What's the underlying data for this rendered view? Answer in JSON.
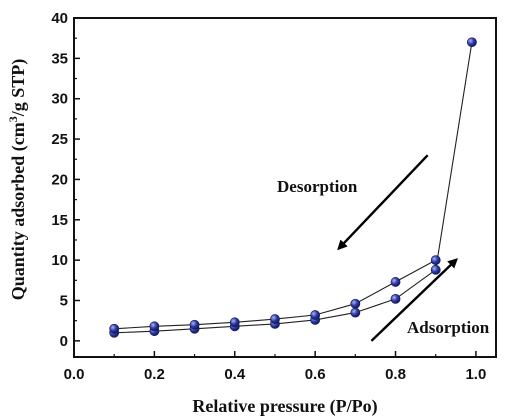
{
  "chart_data": {
    "type": "line",
    "title": "",
    "xlabel": "Relative pressure (P/Po)",
    "ylabel_parts": {
      "pre": "Quantity adsorbed (cm",
      "sup": "3",
      "post": "/g STP)"
    },
    "xlim": [
      0.0,
      1.05
    ],
    "ylim": [
      -2,
      40
    ],
    "xticks": [
      0.0,
      0.2,
      0.4,
      0.6,
      0.8,
      1.0
    ],
    "xtick_labels": [
      "0.0",
      "0.2",
      "0.4",
      "0.6",
      "0.8",
      "1.0"
    ],
    "yticks": [
      0,
      5,
      10,
      15,
      20,
      25,
      30,
      35,
      40
    ],
    "ytick_labels": [
      "0",
      "5",
      "10",
      "15",
      "20",
      "25",
      "30",
      "35",
      "40"
    ],
    "grid": false,
    "series": [
      {
        "x": [
          0.1,
          0.2,
          0.3,
          0.4,
          0.5,
          0.6,
          0.7,
          0.8,
          0.9,
          0.99
        ],
        "y": [
          1.0,
          1.2,
          1.5,
          1.8,
          2.1,
          2.6,
          3.5,
          5.2,
          8.8,
          37.0
        ]
      },
      {
        "x": [
          0.1,
          0.2,
          0.3,
          0.4,
          0.5,
          0.6,
          0.7,
          0.8,
          0.9
        ],
        "y": [
          1.5,
          1.8,
          2.0,
          2.3,
          2.7,
          3.2,
          4.6,
          7.3,
          10.0
        ]
      }
    ],
    "annotations": [
      {
        "text": "Desorption",
        "arrow_from": [
          0.88,
          23
        ],
        "arrow_to": [
          0.66,
          11.5
        ]
      },
      {
        "text": "Adsorption",
        "arrow_from": [
          0.74,
          0.0
        ],
        "arrow_to": [
          0.95,
          10.0
        ]
      }
    ],
    "colors": {
      "marker": "#2c3aa8",
      "marker_highlight": "#aeb6ee",
      "line": "#222222",
      "axis": "#111111"
    }
  }
}
